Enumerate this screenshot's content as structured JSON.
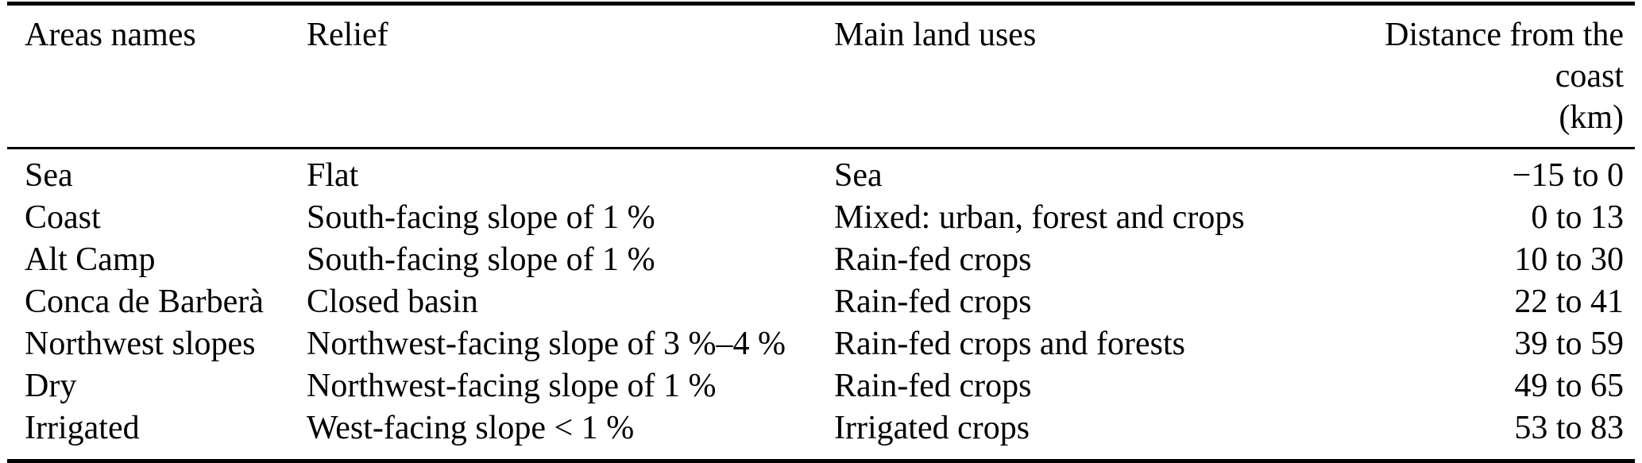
{
  "table": {
    "columns": [
      {
        "id": "areas",
        "label": "Areas names"
      },
      {
        "id": "relief",
        "label": "Relief"
      },
      {
        "id": "land_uses",
        "label": "Main land uses"
      },
      {
        "id": "distance",
        "label": "Distance from the coast\n(km)"
      }
    ],
    "rows": [
      [
        "Sea",
        "Flat",
        "Sea",
        "−15 to 0"
      ],
      [
        "Coast",
        "South-facing slope of 1 %",
        "Mixed: urban, forest and crops",
        "0 to 13"
      ],
      [
        "Alt Camp",
        "South-facing slope of 1 %",
        "Rain-fed crops",
        "10 to 30"
      ],
      [
        "Conca de Barberà",
        "Closed basin",
        "Rain-fed crops",
        "22 to 41"
      ],
      [
        "Northwest slopes",
        "Northwest-facing slope of 3 %–4 %",
        "Rain-fed crops and forests",
        "39 to 59"
      ],
      [
        "Dry",
        "Northwest-facing slope of 1 %",
        "Rain-fed crops",
        "49 to 65"
      ],
      [
        "Irrigated",
        "West-facing slope < 1 %",
        "Irrigated crops",
        "53 to 83"
      ]
    ]
  },
  "colors": {
    "text": "#000000",
    "background": "#ffffff",
    "rule": "#000000"
  }
}
